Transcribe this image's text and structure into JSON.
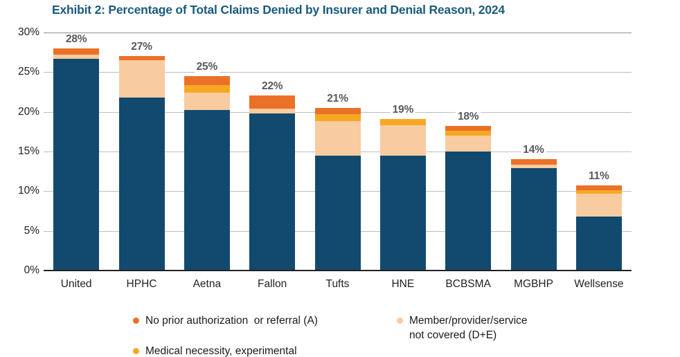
{
  "title": "Exhibit 2: Percentage of Total Claims Denied by Insurer and Denial Reason, 2024",
  "colors": {
    "navy": "#124A6F",
    "peach": "#F9CBA1",
    "amber": "#F7A823",
    "orange": "#EB7128",
    "title_text": "#1A5B7D",
    "bar_label": "#58595B",
    "axis_text": "#231F20",
    "gridline": "#BDBDBD",
    "gridline_top": "#8F8F8F",
    "axis_line": "#231F20"
  },
  "chart_data": {
    "type": "bar",
    "stacked": true,
    "title": "Exhibit 2: Percentage of Total Claims Denied by Insurer and Denial Reason, 2024",
    "categories": [
      "United",
      "HPHC",
      "Aetna",
      "Fallon",
      "Tufts",
      "HNE",
      "BCBSMA",
      "MGBHP",
      "Wellsense"
    ],
    "total_labels": [
      "28%",
      "27%",
      "25%",
      "22%",
      "21%",
      "19%",
      "18%",
      "14%",
      "11%"
    ],
    "totals": [
      28,
      27,
      25,
      22,
      21,
      19,
      18,
      14,
      11
    ],
    "series": [
      {
        "name": "",
        "color_key": "navy",
        "values": [
          26.7,
          21.8,
          20.2,
          19.8,
          14.5,
          14.5,
          15.0,
          12.9,
          6.8
        ]
      },
      {
        "name": "Member/provider/service not covered (D+E)",
        "color_key": "peach",
        "values": [
          0.5,
          4.7,
          2.2,
          0.6,
          4.3,
          3.8,
          2.0,
          0.45,
          2.9
        ]
      },
      {
        "name": "Medical necessity, experimental",
        "color_key": "amber",
        "values": [
          0,
          0,
          1.0,
          0,
          0.9,
          0.8,
          0.6,
          0,
          0.4
        ]
      },
      {
        "name": "No prior authorization or referral (A)",
        "color_key": "orange",
        "values": [
          0.8,
          0.5,
          1.1,
          1.7,
          0.8,
          0,
          0.6,
          0.65,
          0.6
        ]
      }
    ],
    "ylabel": "",
    "ylim": [
      0,
      30
    ],
    "ytick_step": 5,
    "yticks": [
      "0%",
      "5%",
      "10%",
      "15%",
      "20%",
      "25%",
      "30%"
    ],
    "grid": true,
    "legend_position": "bottom"
  },
  "legend": {
    "items": [
      {
        "label": "No prior authorization  or referral (A)",
        "label_lines": [
          "No prior authorization  or referral (A)"
        ],
        "color_key": "orange"
      },
      {
        "label": "Medical necessity, experimental",
        "label_lines": [
          "Medical necessity, experimental"
        ],
        "color_key": "amber"
      },
      {
        "label": "Member/provider/service not covered (D+E)",
        "label_lines": [
          "Member/provider/service",
          "not covered (D+E)"
        ],
        "color_key": "peach"
      }
    ]
  }
}
